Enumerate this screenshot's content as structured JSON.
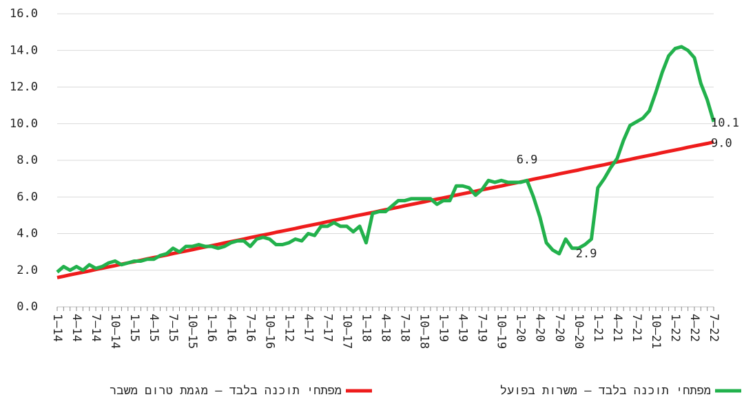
{
  "chart_data": {
    "type": "line",
    "categories": [
      "1–14",
      null,
      null,
      "4–14",
      null,
      null,
      "7–14",
      null,
      null,
      "10–14",
      null,
      null,
      "1–15",
      null,
      null,
      "4–15",
      null,
      null,
      "7–15",
      null,
      null,
      "10–15",
      null,
      null,
      "1–16",
      null,
      null,
      "4–16",
      null,
      null,
      "7–16",
      null,
      null,
      "10–16",
      null,
      null,
      "1–12",
      null,
      null,
      "4–17",
      null,
      null,
      "7–17",
      null,
      null,
      "10–17",
      null,
      null,
      "1–18",
      null,
      null,
      "4–18",
      null,
      null,
      "7–18",
      null,
      null,
      "10–18",
      null,
      null,
      "1–19",
      null,
      null,
      "4–19",
      null,
      null,
      "7–19",
      null,
      null,
      "10–19",
      null,
      null,
      "1–20",
      null,
      null,
      "4–20",
      null,
      null,
      "7–20",
      null,
      null,
      "10–20",
      null,
      null,
      "1–21",
      null,
      null,
      "4–21",
      null,
      null,
      "7–21",
      null,
      null,
      "10–21",
      null,
      null,
      "1–22",
      null,
      null,
      "4–22",
      null,
      null,
      "7–22"
    ],
    "series": [
      {
        "name": "מפתחי תוכנה בלבד – משרות בפועל",
        "color": "#22b14c",
        "values": [
          1.9,
          2.2,
          2.0,
          2.2,
          2.0,
          2.3,
          2.1,
          2.2,
          2.4,
          2.5,
          2.3,
          2.4,
          2.5,
          2.5,
          2.6,
          2.6,
          2.8,
          2.9,
          3.2,
          3.0,
          3.3,
          3.3,
          3.4,
          3.3,
          3.3,
          3.2,
          3.3,
          3.5,
          3.6,
          3.6,
          3.3,
          3.7,
          3.8,
          3.7,
          3.4,
          3.4,
          3.5,
          3.7,
          3.6,
          4.0,
          3.9,
          4.4,
          4.4,
          4.6,
          4.4,
          4.4,
          4.1,
          4.4,
          3.5,
          5.1,
          5.2,
          5.2,
          5.5,
          5.8,
          5.8,
          5.9,
          5.9,
          5.9,
          5.9,
          5.6,
          5.8,
          5.8,
          6.6,
          6.6,
          6.5,
          6.1,
          6.4,
          6.9,
          6.8,
          6.9,
          6.8,
          6.8,
          6.8,
          6.9,
          6.0,
          4.9,
          3.5,
          3.1,
          2.9,
          3.7,
          3.2,
          3.2,
          3.4,
          3.7,
          6.5,
          7.0,
          7.6,
          8.1,
          9.1,
          9.9,
          10.1,
          10.3,
          10.7,
          11.7,
          12.8,
          13.7,
          14.1,
          14.2,
          14.0,
          13.6,
          12.2,
          11.3,
          10.1
        ],
        "value_labels": [
          null,
          null,
          null,
          null,
          null,
          null,
          null,
          null,
          null,
          null,
          null,
          null,
          null,
          null,
          null,
          null,
          null,
          null,
          null,
          null,
          null,
          null,
          null,
          null,
          null,
          null,
          null,
          null,
          null,
          null,
          null,
          null,
          null,
          null,
          null,
          null,
          null,
          null,
          null,
          null,
          null,
          null,
          null,
          null,
          null,
          null,
          null,
          null,
          null,
          null,
          null,
          null,
          null,
          null,
          null,
          null,
          null,
          null,
          null,
          null,
          null,
          null,
          null,
          null,
          null,
          null,
          null,
          null,
          null,
          null,
          null,
          null,
          null,
          "6.9",
          null,
          null,
          null,
          null,
          "2.9",
          null,
          null,
          null,
          null,
          null,
          null,
          null,
          null,
          null,
          null,
          null,
          null,
          null,
          null,
          null,
          null,
          null,
          null,
          null,
          null,
          null,
          null,
          null,
          "10.1"
        ]
      },
      {
        "name": "מפתחי תוכנה בלבד – מגמת טרום משבר",
        "color": "#ee1c1c",
        "values": [
          1.6,
          1.67,
          1.75,
          1.82,
          1.89,
          1.96,
          2.04,
          2.11,
          2.18,
          2.25,
          2.33,
          2.4,
          2.47,
          2.54,
          2.62,
          2.69,
          2.76,
          2.83,
          2.91,
          2.98,
          3.05,
          3.12,
          3.2,
          3.27,
          3.34,
          3.41,
          3.49,
          3.56,
          3.63,
          3.7,
          3.78,
          3.85,
          3.92,
          3.99,
          4.07,
          4.14,
          4.21,
          4.28,
          4.36,
          4.43,
          4.5,
          4.57,
          4.65,
          4.72,
          4.79,
          4.86,
          4.94,
          5.01,
          5.08,
          5.15,
          5.23,
          5.3,
          5.37,
          5.44,
          5.52,
          5.59,
          5.66,
          5.73,
          5.81,
          5.88,
          5.95,
          6.02,
          6.1,
          6.17,
          6.24,
          6.31,
          6.39,
          6.46,
          6.53,
          6.6,
          6.68,
          6.75,
          6.82,
          6.89,
          6.97,
          7.04,
          7.11,
          7.18,
          7.26,
          7.33,
          7.4,
          7.47,
          7.55,
          7.62,
          7.69,
          7.76,
          7.84,
          7.91,
          7.98,
          8.05,
          8.13,
          8.2,
          8.27,
          8.34,
          8.42,
          8.49,
          8.56,
          8.63,
          8.71,
          8.78,
          8.85,
          8.92,
          9.0
        ],
        "value_labels": [
          null,
          null,
          null,
          null,
          null,
          null,
          null,
          null,
          null,
          null,
          null,
          null,
          null,
          null,
          null,
          null,
          null,
          null,
          null,
          null,
          null,
          null,
          null,
          null,
          null,
          null,
          null,
          null,
          null,
          null,
          null,
          null,
          null,
          null,
          null,
          null,
          null,
          null,
          null,
          null,
          null,
          null,
          null,
          null,
          null,
          null,
          null,
          null,
          null,
          null,
          null,
          null,
          null,
          null,
          null,
          null,
          null,
          null,
          null,
          null,
          null,
          null,
          null,
          null,
          null,
          null,
          null,
          null,
          null,
          null,
          null,
          null,
          null,
          null,
          null,
          null,
          null,
          null,
          null,
          null,
          null,
          null,
          null,
          null,
          null,
          null,
          null,
          null,
          null,
          null,
          null,
          null,
          null,
          null,
          null,
          null,
          null,
          null,
          null,
          null,
          null,
          null,
          "9.0"
        ]
      }
    ],
    "ylim": [
      0,
      16
    ],
    "yticks": [
      {
        "value": 0,
        "label": "0.0"
      },
      {
        "value": 2,
        "label": "2.0"
      },
      {
        "value": 4,
        "label": "4.0"
      },
      {
        "value": 6,
        "label": "6.0"
      },
      {
        "value": 8,
        "label": "8.0"
      },
      {
        "value": 10,
        "label": "10.0"
      },
      {
        "value": 12,
        "label": "12.0"
      },
      {
        "value": 14,
        "label": "14.0"
      },
      {
        "value": 16,
        "label": "16.0"
      }
    ],
    "grid": true,
    "legend": "bottom"
  }
}
